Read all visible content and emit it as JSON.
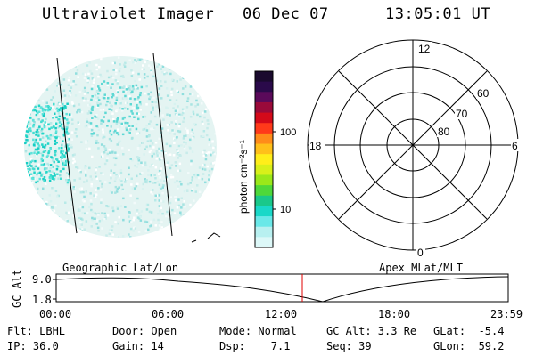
{
  "header": {
    "title": "Ultraviolet Imager",
    "date": "06 Dec 07",
    "time": "13:05:01 UT"
  },
  "colorbar": {
    "label": "photon cm⁻²s⁻¹",
    "ticks": [
      "100",
      "10"
    ],
    "colors": [
      "#1a0a2e",
      "#2a0a4a",
      "#5a0a5a",
      "#9a0a3a",
      "#d40a1a",
      "#ff3a1a",
      "#ff8c1a",
      "#ffc01a",
      "#ffee1a",
      "#d8f01a",
      "#9ae81a",
      "#4ed83a",
      "#1ac88a",
      "#1ad8c8",
      "#6ae8e8",
      "#b8f0f0",
      "#ddf8f8"
    ]
  },
  "polar": {
    "mlt_labels": {
      "top": "12",
      "left": "18",
      "right": "6",
      "bottom": "0"
    },
    "lat_labels": [
      "60",
      "70",
      "80"
    ]
  },
  "timeline": {
    "left_label": "Geographic Lat/Lon",
    "right_label": "Apex MLat/MLT",
    "yaxis_label": "GC Alt",
    "ytick_top": "9.0",
    "ytick_bottom": "1.8",
    "xticks": [
      "00:00",
      "06:00",
      "12:00",
      "18:00",
      "23:59"
    ],
    "marker_color": "#e00000"
  },
  "footer": {
    "row1": {
      "flt": "Flt: LBHL",
      "door": "Door: Open",
      "mode": "Mode: Normal",
      "gcalt": "GC Alt: 3.3 Re",
      "glat": "GLat:  -5.4"
    },
    "row2": {
      "ip": "IP: 36.0",
      "gain": "Gain: 14",
      "dsp": "Dsp:    7.1",
      "seq": "Seq: 39",
      "glon": "GLon:  59.2"
    }
  }
}
